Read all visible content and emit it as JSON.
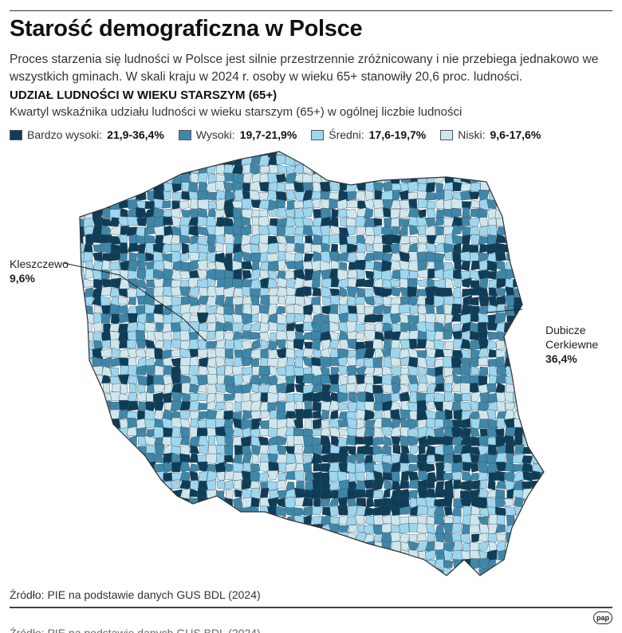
{
  "title": "Starość demograficzna w Polsce",
  "lead": "Proces starzenia się ludności w Polsce jest silnie przestrzennie zróżnicowany i nie przebiega jednakowo we wszystkich gminach. W skali kraju w 2024 r. osoby w wieku 65+ stanowiły 20,6 proc. ludności.",
  "subtitle": "UDZIAŁ LUDNOŚCI W WIEKU STARSZYM (65+)",
  "subtitle_desc": "Kwartyl wskaźnika udziału ludności w wieku starszym (65+) w ogólnej liczbie ludności",
  "legend": [
    {
      "label": "Bardzo wysoki:",
      "range": "21,9-36,4%",
      "color": "#0e3d58"
    },
    {
      "label": "Wysoki:",
      "range": "19,7-21,9%",
      "color": "#3f87a9"
    },
    {
      "label": "Średni:",
      "range": "17,6-19,7%",
      "color": "#9ed6ee"
    },
    {
      "label": "Niski:",
      "range": "9,6-17,6%",
      "color": "#d0e6ed"
    }
  ],
  "annotations": {
    "min": {
      "name": "Kleszczewo",
      "value": "9,6%"
    },
    "max": {
      "name_line1": "Dubicze",
      "name_line2": "Cerkiewne",
      "value": "36,4%"
    }
  },
  "source": "Źródło: PIE na podstawie danych GUS BDL (2024)",
  "logo": "pap"
}
